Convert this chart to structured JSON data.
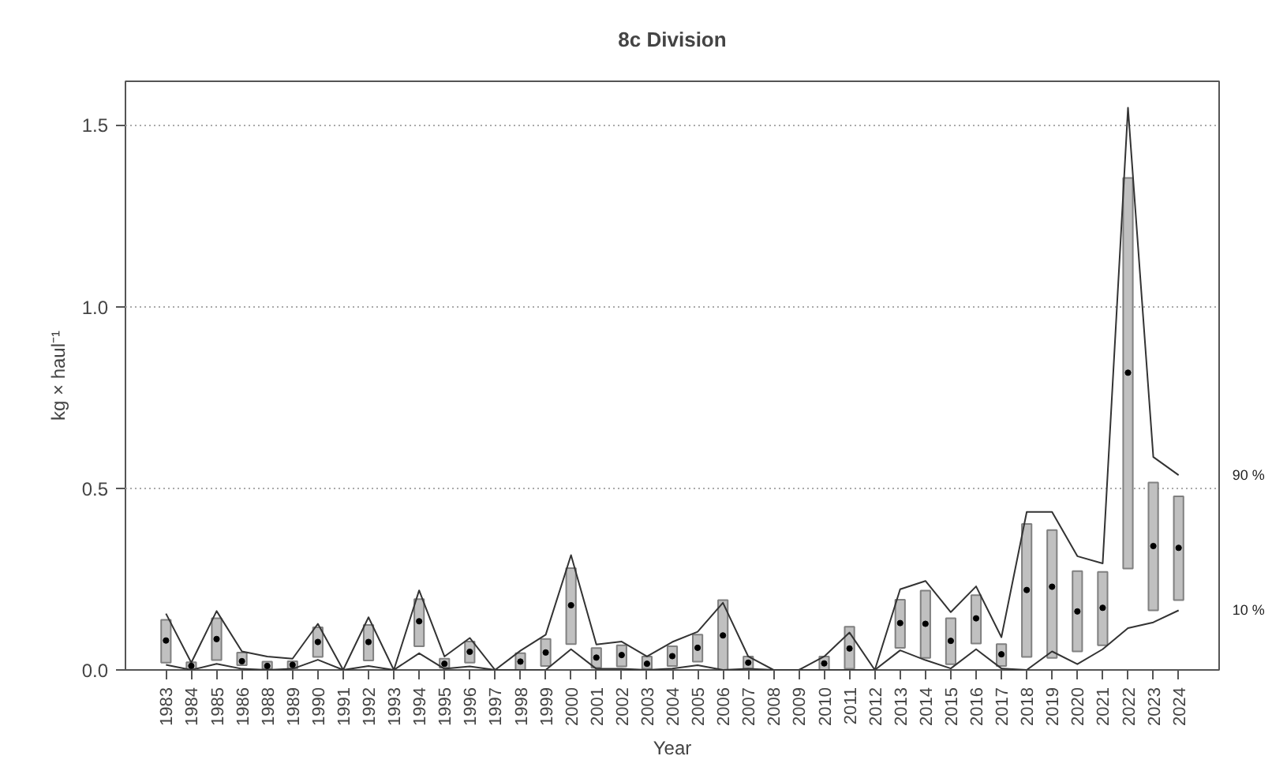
{
  "chart_data": {
    "type": "bar",
    "title": "8c Division",
    "xlabel": "Year",
    "ylabel": "kg × haul⁻¹",
    "categories": [
      "1983",
      "1984",
      "1985",
      "1986",
      "1988",
      "1989",
      "1990",
      "1991",
      "1992",
      "1993",
      "1994",
      "1995",
      "1996",
      "1997",
      "1998",
      "1999",
      "2000",
      "2001",
      "2002",
      "2003",
      "2004",
      "2005",
      "2006",
      "2007",
      "2008",
      "2009",
      "2010",
      "2011",
      "2012",
      "2013",
      "2014",
      "2015",
      "2016",
      "2017",
      "2018",
      "2019",
      "2020",
      "2021",
      "2022",
      "2023",
      "2024"
    ],
    "ylim": [
      0,
      1.62
    ],
    "yticks": [
      {
        "value": 0,
        "label": "0.0"
      },
      0.5,
      {
        "value": 1.0,
        "label": "1.0"
      },
      1.5
    ],
    "grid": "y",
    "series": [
      {
        "color": "#c0c0c0",
        "base": [
          0.02,
          0.0,
          0.027,
          0.013,
          0.003,
          0.003,
          0.036,
          null,
          0.026,
          null,
          0.065,
          0.006,
          0.02,
          null,
          0.0,
          0.011,
          0.071,
          0.006,
          0.01,
          0.003,
          0.011,
          0.023,
          0.0,
          0.003,
          null,
          null,
          0.0,
          0.003,
          null,
          0.061,
          0.033,
          0.016,
          0.073,
          0.011,
          0.036,
          0.033,
          0.051,
          0.068,
          0.279,
          0.164,
          0.192
        ],
        "values": [
          0.118,
          0.021,
          0.115,
          0.035,
          0.02,
          0.021,
          0.081,
          null,
          0.098,
          null,
          0.13,
          0.025,
          0.058,
          null,
          0.046,
          0.074,
          0.209,
          0.054,
          0.058,
          0.034,
          0.054,
          0.074,
          0.192,
          0.034,
          null,
          null,
          0.037,
          0.116,
          null,
          0.132,
          0.185,
          0.126,
          0.133,
          0.06,
          0.366,
          0.352,
          0.221,
          0.202,
          1.075,
          0.352,
          0.286
        ]
      },
      {
        "type": "scatter",
        "color": "#000000",
        "marker": "circle",
        "values": [
          0.081,
          0.011,
          0.085,
          0.024,
          0.011,
          0.014,
          0.077,
          null,
          0.077,
          null,
          0.134,
          0.017,
          0.05,
          null,
          0.023,
          0.048,
          0.178,
          0.034,
          0.041,
          0.017,
          0.038,
          0.061,
          0.095,
          0.02,
          null,
          null,
          0.018,
          0.059,
          null,
          0.129,
          0.127,
          0.08,
          0.142,
          0.043,
          0.22,
          0.229,
          0.161,
          0.171,
          0.818,
          0.341,
          0.336
        ]
      },
      {
        "type": "line",
        "name": "90 %",
        "color": "#333333",
        "values": [
          0.155,
          0.02,
          0.162,
          0.051,
          0.037,
          0.031,
          0.127,
          0,
          0.145,
          0,
          0.219,
          0.037,
          0.088,
          0,
          0.053,
          0.097,
          0.316,
          0.07,
          0.078,
          0.037,
          0.077,
          0.105,
          0.185,
          0.037,
          0,
          0,
          0.037,
          0.103,
          0,
          0.222,
          0.245,
          0.159,
          0.23,
          0.09,
          0.435,
          0.435,
          0.313,
          0.293,
          1.547,
          0.586,
          0.536
        ]
      },
      {
        "type": "line",
        "name": "10 %",
        "color": "#333333",
        "values": [
          0.014,
          0,
          0.017,
          0.003,
          0,
          0.003,
          0.028,
          0,
          0.011,
          0,
          0.046,
          0.003,
          0.01,
          0,
          0,
          0,
          0.057,
          0.003,
          0.003,
          0,
          0.004,
          0.013,
          0,
          0.003,
          0,
          0,
          0,
          0,
          0,
          0.054,
          0.027,
          0.004,
          0.057,
          0.004,
          0,
          0.051,
          0.016,
          0.057,
          0.115,
          0.131,
          0.164
        ]
      }
    ]
  }
}
